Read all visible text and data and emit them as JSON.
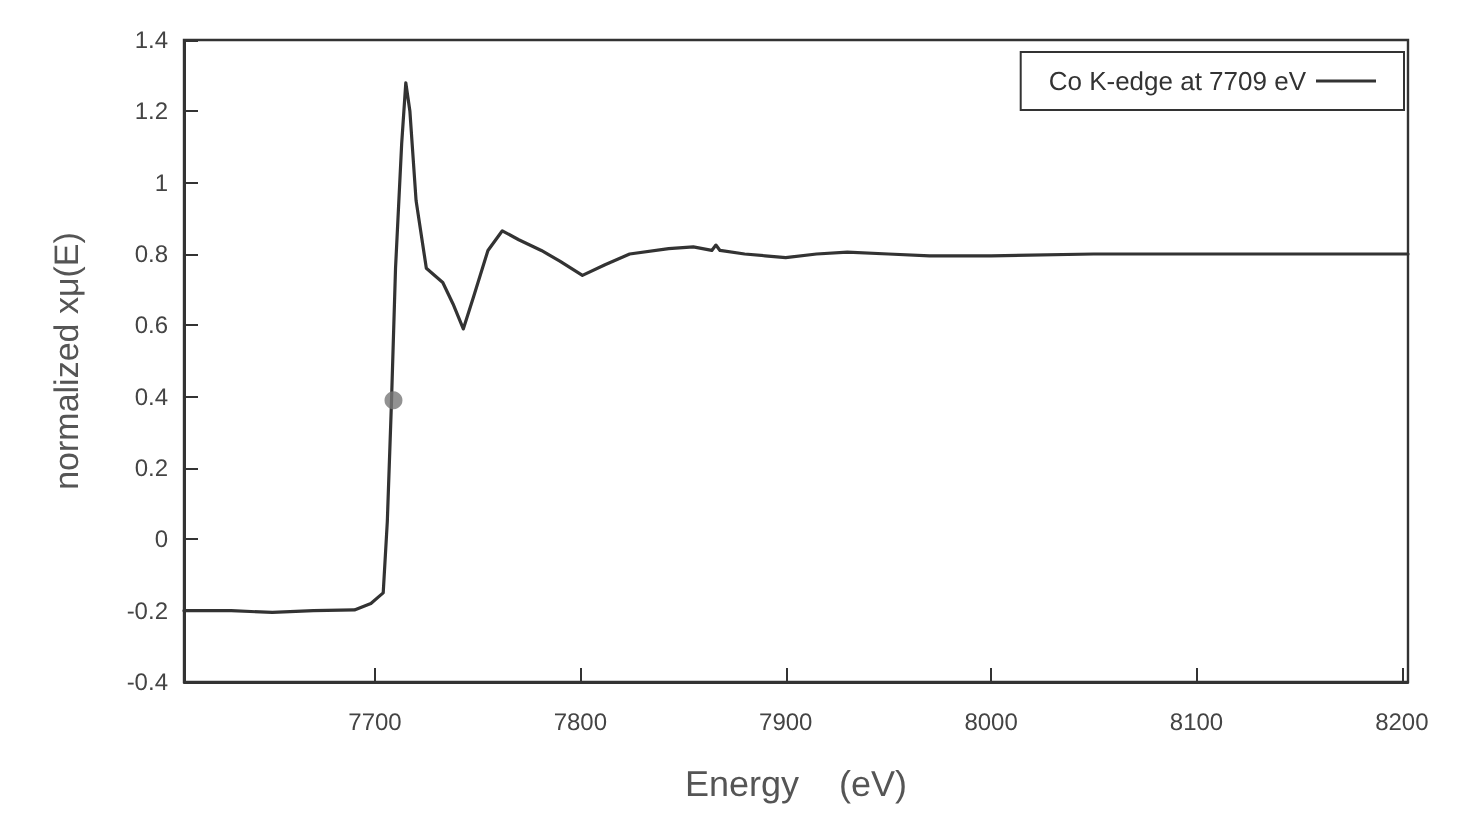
{
  "chart_data": {
    "type": "line",
    "xlabel": "Energy    (eV)",
    "ylabel": "normalized xμ(E)",
    "legend": "top right",
    "grid": false,
    "marker": "none",
    "line_style": "solid",
    "xlim": [
      7607,
      8203
    ],
    "xticks": [
      7700,
      7800,
      7900,
      8000,
      8100,
      8200
    ],
    "ylim": [
      -0.4,
      1.4
    ],
    "yticks": [
      -0.4,
      -0.2,
      0,
      0.2,
      0.4,
      0.6,
      0.8,
      1,
      1.2,
      1.4
    ],
    "series": [
      {
        "name": "Co K-edge at 7709 eV",
        "color": "#333333",
        "x": [
          7607,
          7630,
          7650,
          7670,
          7690,
          7698,
          7702,
          7704,
          7706,
          7708,
          7710,
          7713,
          7715,
          7717,
          7720,
          7725,
          7733,
          7738,
          7743,
          7748,
          7755,
          7762,
          7770,
          7781,
          7790,
          7801,
          7812,
          7824,
          7843,
          7855,
          7864,
          7866,
          7868,
          7880,
          7890,
          7900,
          7915,
          7930,
          7950,
          7970,
          8000,
          8050,
          8100,
          8150,
          8203
        ],
        "values": [
          -0.2,
          -0.2,
          -0.205,
          -0.2,
          -0.198,
          -0.18,
          -0.16,
          -0.15,
          0.05,
          0.38,
          0.76,
          1.11,
          1.28,
          1.2,
          0.95,
          0.76,
          0.72,
          0.66,
          0.59,
          0.68,
          0.81,
          0.865,
          0.84,
          0.81,
          0.78,
          0.74,
          0.77,
          0.8,
          0.815,
          0.82,
          0.81,
          0.825,
          0.81,
          0.8,
          0.795,
          0.79,
          0.8,
          0.805,
          0.8,
          0.795,
          0.795,
          0.8,
          0.8,
          0.8,
          0.8
        ]
      },
      {
        "type": "scatter",
        "marker": "circle",
        "color": "#777777",
        "x": [
          7709
        ],
        "values": [
          0.39
        ]
      }
    ]
  }
}
